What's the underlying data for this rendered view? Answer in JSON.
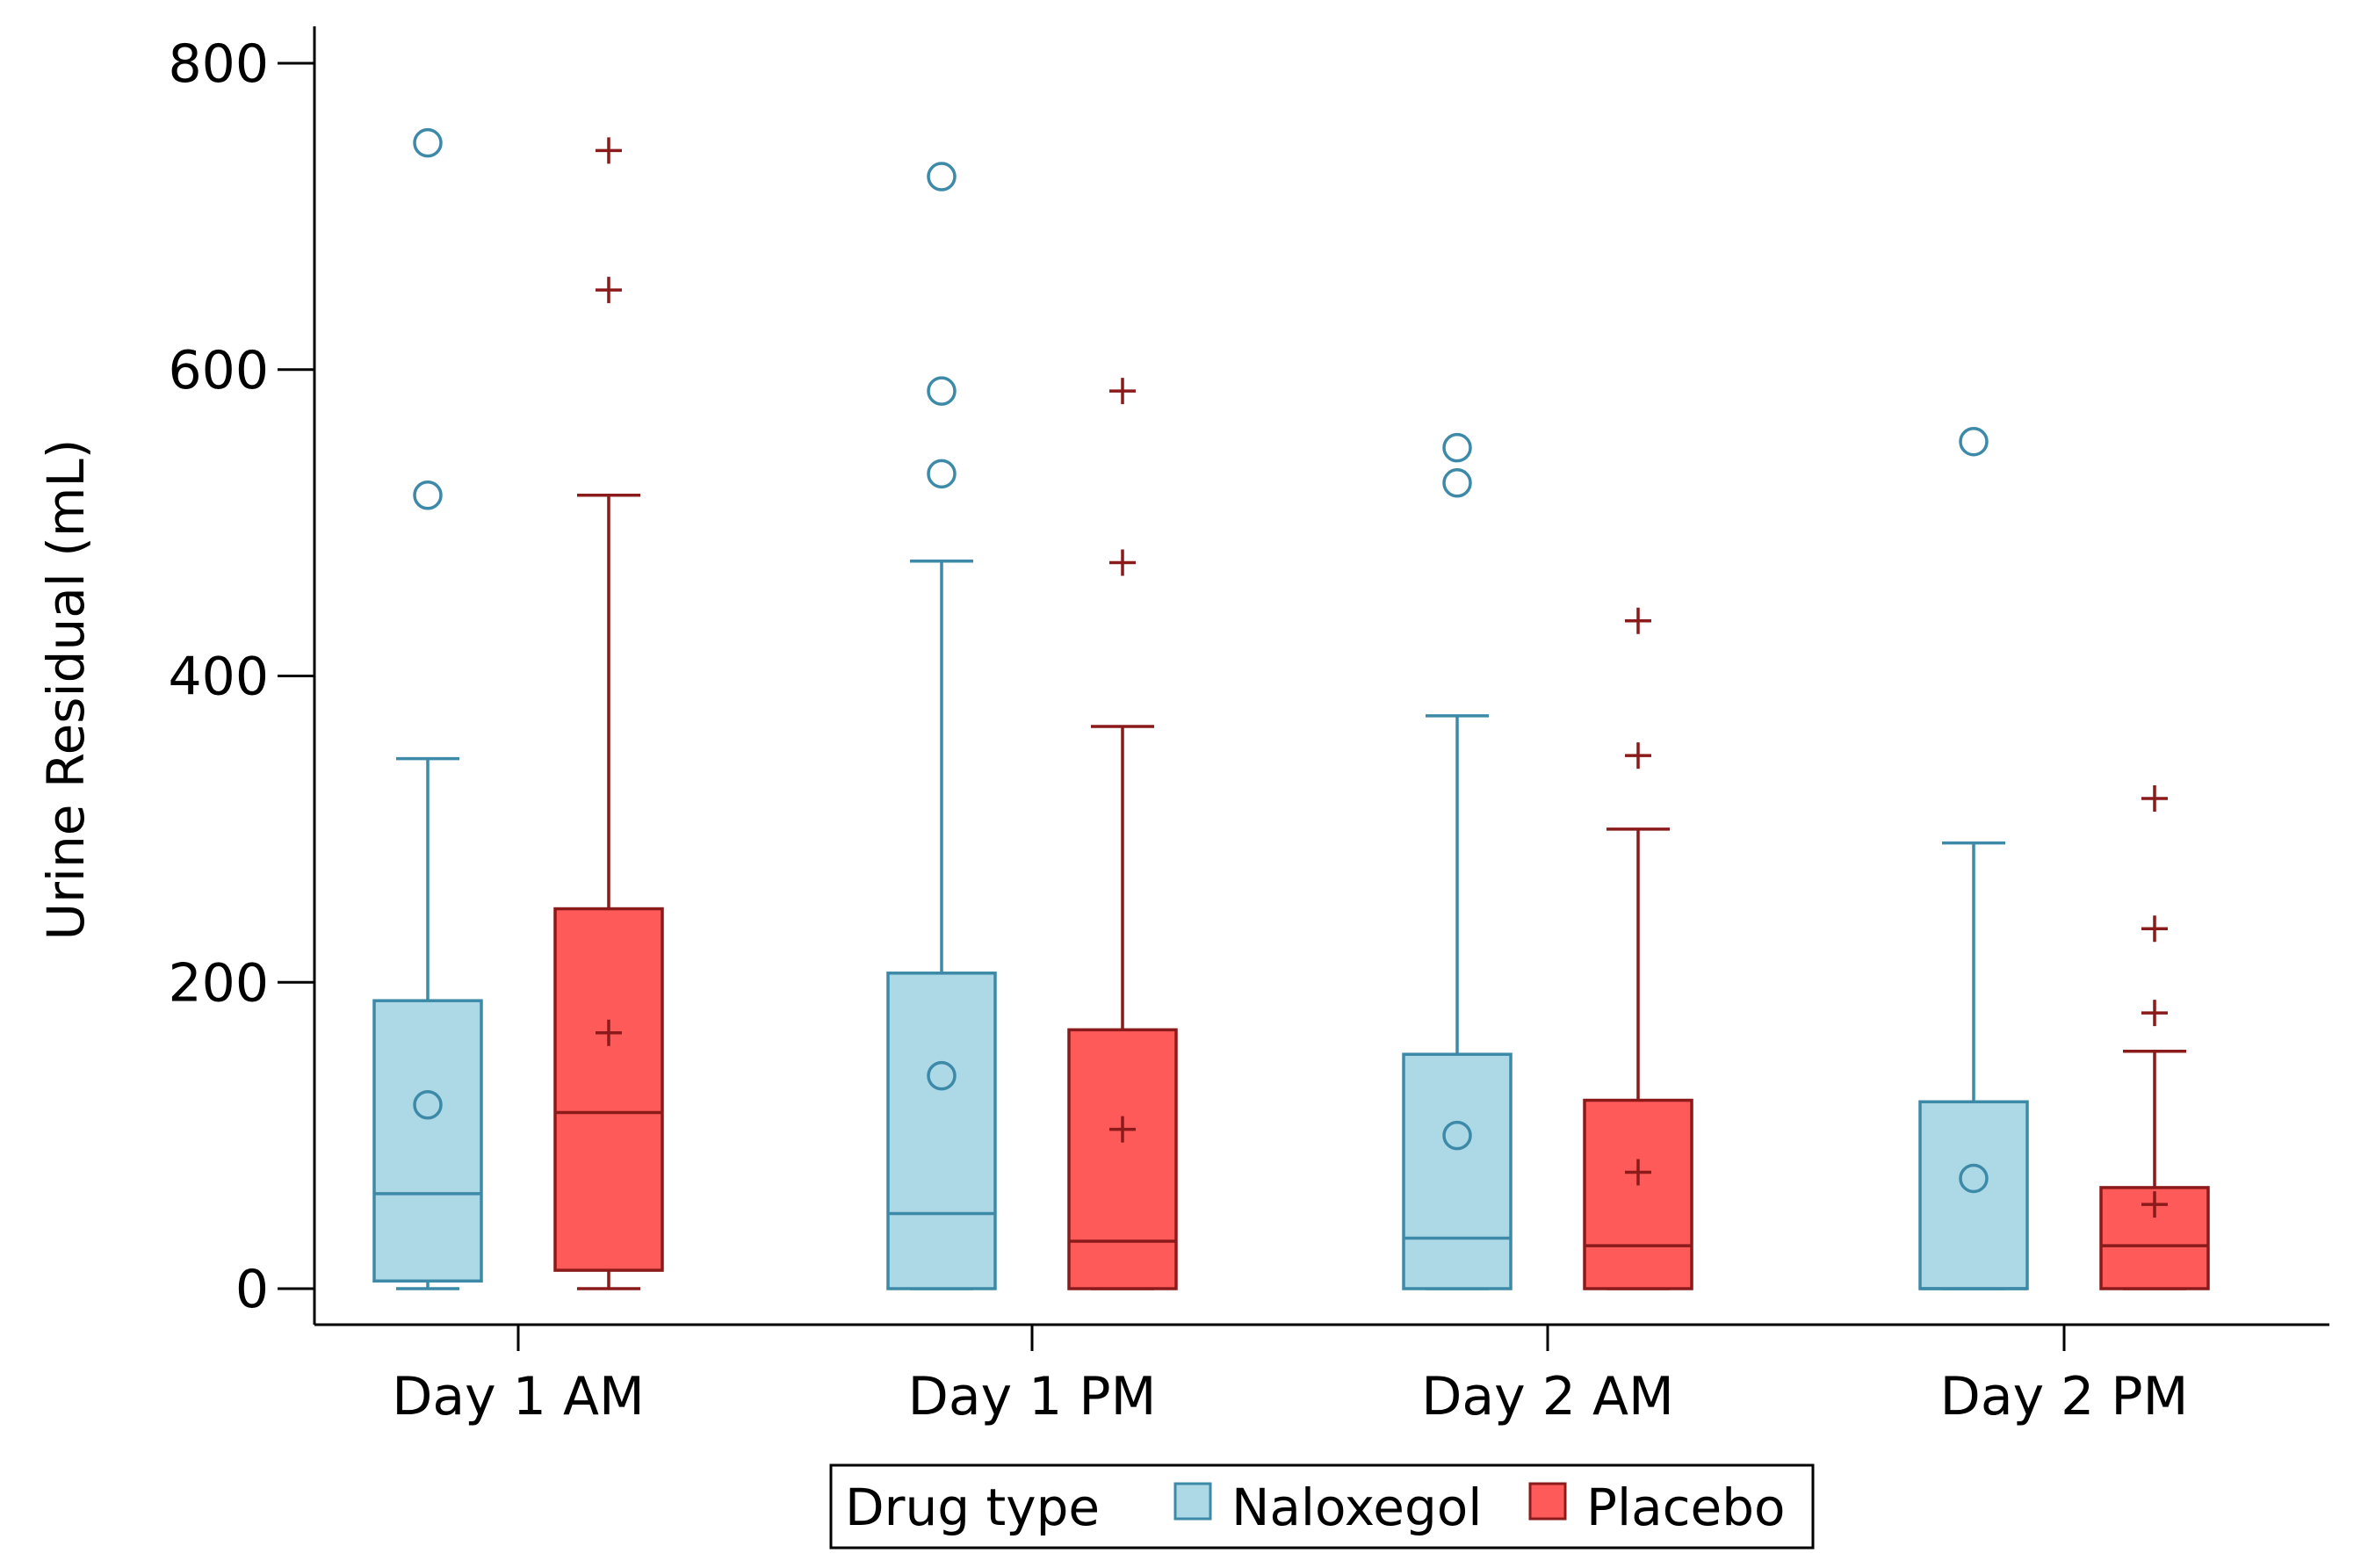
{
  "chart_data": {
    "type": "boxplot",
    "title": "",
    "xlabel": "",
    "ylabel": "Urine Residual (mL)",
    "ylim": [
      -25,
      825
    ],
    "yticks": [
      0,
      200,
      400,
      600,
      800
    ],
    "ytick_labels": [
      "0",
      "200",
      "400",
      "600",
      "800"
    ],
    "categories": [
      "Day 1 AM",
      "Day 1 PM",
      "Day 2 AM",
      "Day 2 PM"
    ],
    "grid": false,
    "legend": {
      "title": "Drug type",
      "position": "bottom",
      "entries": [
        {
          "name": "Naloxegol",
          "marker": "circle"
        },
        {
          "name": "Placebo",
          "marker": "plus"
        }
      ]
    },
    "series": [
      {
        "name": "Naloxegol",
        "fill": "#add8e6",
        "stroke": "#3d8aa8",
        "mean_marker": "circle",
        "boxes": [
          {
            "category": "Day 1 AM",
            "whisker_low": 0,
            "q1": 5,
            "median": 62,
            "q3": 188,
            "whisker_high": 346,
            "mean": 120,
            "outliers": [
              518,
              748
            ]
          },
          {
            "category": "Day 1 PM",
            "whisker_low": 0,
            "q1": 0,
            "median": 49,
            "q3": 206,
            "whisker_high": 475,
            "mean": 139,
            "outliers": [
              532,
              586,
              726
            ]
          },
          {
            "category": "Day 2 AM",
            "whisker_low": 0,
            "q1": 0,
            "median": 33,
            "q3": 153,
            "whisker_high": 374,
            "mean": 100,
            "outliers": [
              526,
              549
            ]
          },
          {
            "category": "Day 2 PM",
            "whisker_low": 0,
            "q1": 0,
            "median": 0,
            "q3": 122,
            "whisker_high": 291,
            "mean": 72,
            "outliers": [
              553
            ]
          }
        ]
      },
      {
        "name": "Placebo",
        "fill": "#ff5a5a",
        "stroke": "#8b1a1a",
        "mean_marker": "plus",
        "boxes": [
          {
            "category": "Day 1 AM",
            "whisker_low": 0,
            "q1": 12,
            "median": 115,
            "q3": 248,
            "whisker_high": 518,
            "mean": 167,
            "outliers": [
              652,
              743
            ]
          },
          {
            "category": "Day 1 PM",
            "whisker_low": 0,
            "q1": 0,
            "median": 31,
            "q3": 169,
            "whisker_high": 367,
            "mean": 104,
            "outliers": [
              474,
              586
            ]
          },
          {
            "category": "Day 2 AM",
            "whisker_low": 0,
            "q1": 0,
            "median": 28,
            "q3": 123,
            "whisker_high": 300,
            "mean": 76,
            "outliers": [
              348,
              436
            ]
          },
          {
            "category": "Day 2 PM",
            "whisker_low": 0,
            "q1": 0,
            "median": 28,
            "q3": 66,
            "whisker_high": 155,
            "mean": 55,
            "outliers": [
              180,
              235,
              320
            ]
          }
        ]
      }
    ]
  }
}
